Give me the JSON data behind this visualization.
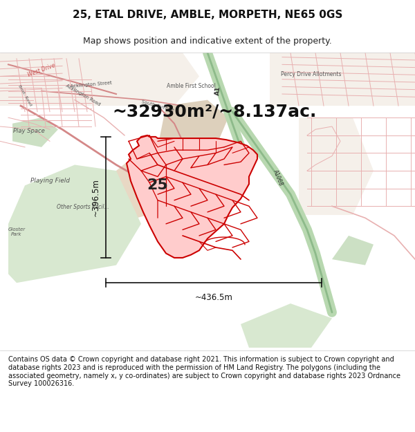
{
  "title": "25, ETAL DRIVE, AMBLE, MORPETH, NE65 0GS",
  "subtitle": "Map shows position and indicative extent of the property.",
  "area_text": "~32930m²/~8.137ac.",
  "label_25": "25",
  "dim_vertical": "~396.5m",
  "dim_horizontal": "~436.5m",
  "footer": "Contains OS data © Crown copyright and database right 2021. This information is subject to Crown copyright and database rights 2023 and is reproduced with the permission of HM Land Registry. The polygons (including the associated geometry, namely x, y co-ordinates) are subject to Crown copyright and database rights 2023 Ordnance Survey 100026316.",
  "bg_color": "#ffffff",
  "map_bg": "#f2ede8",
  "title_fontsize": 11,
  "subtitle_fontsize": 9,
  "area_fontsize": 18,
  "footer_fontsize": 7.0,
  "road_color": "#e8b0b0",
  "road_color_dark": "#d48888",
  "green_road_color": "#8dba8a",
  "green_road_fill": "#b8d8b0",
  "park_green": "#d8e8d0",
  "park_green2": "#cce0c4",
  "tan_area": "#e8d8c4",
  "tan_area2": "#ddd0bc",
  "red_fill": "#ffcccc",
  "red_edge": "#cc0000",
  "dim_color": "#111111",
  "label_color": "#555555"
}
